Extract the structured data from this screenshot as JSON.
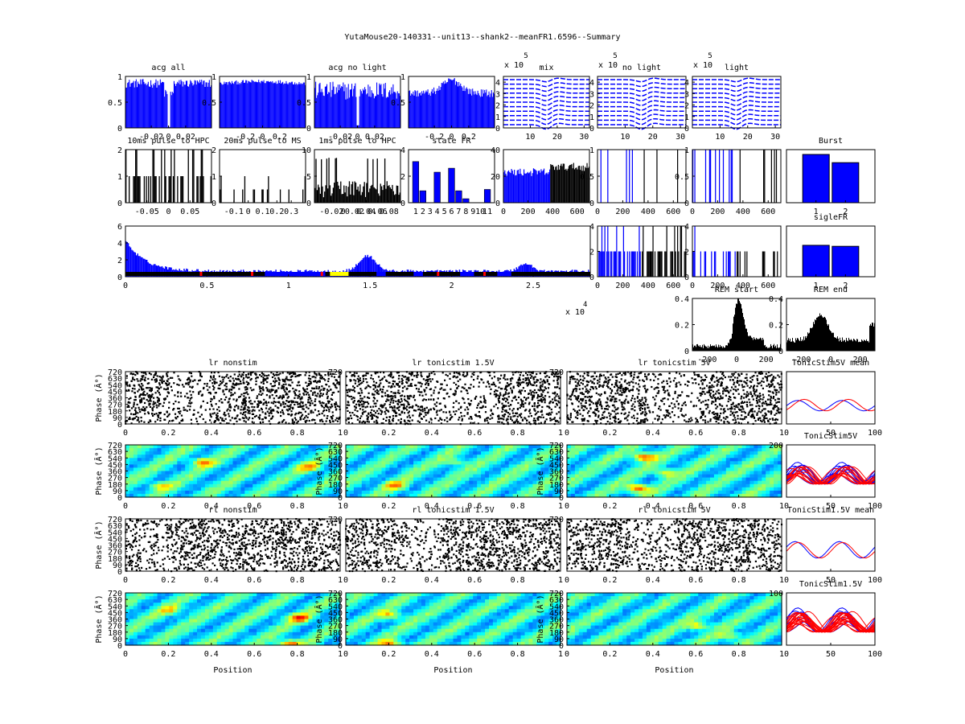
{
  "figure": {
    "title": "YutaMouse20-140331--unit13--shank2--meanFR1.6596--Summary",
    "exp_x_label": "x 10",
    "exp_x_value": "4"
  },
  "colors": {
    "blue": "#0000ff",
    "red": "#ff0000",
    "black": "#000000",
    "yellow": "#ffff00",
    "axis": "#000000"
  },
  "chart_data": [
    {
      "id": "acg-all",
      "type": "bar",
      "title": "acg all",
      "xlim": [
        -0.05,
        0.05
      ],
      "ylim": [
        0,
        1
      ],
      "xticks": [
        "-0.02",
        "0",
        "0.02"
      ],
      "yticks": [
        "0",
        "0.5",
        "1"
      ],
      "series": [
        {
          "name": "acg all",
          "color": "blue",
          "values_desc": "flat ~0.8 with dip to 0 at 0"
        }
      ]
    },
    {
      "id": "acg-wide",
      "type": "bar",
      "title": "",
      "xlim": [
        -0.5,
        0.5
      ],
      "ylim": [
        0,
        1
      ],
      "xticks": [
        "-0.2",
        "0",
        "0.2"
      ],
      "yticks": [
        "0.5",
        "1"
      ],
      "series": [
        {
          "name": "acg wide",
          "color": "blue",
          "values_desc": "flat ~0.85"
        }
      ]
    },
    {
      "id": "acg-no-light",
      "type": "bar",
      "title": "acg no light",
      "xlim": [
        -0.05,
        0.05
      ],
      "ylim": [
        0,
        1
      ],
      "xticks": [
        "-0.02",
        "0",
        "0.02"
      ],
      "yticks": [
        "0",
        "0.5",
        "1"
      ],
      "series": [
        {
          "name": "acg no light",
          "color": "blue",
          "values_desc": "~0.7 with dip at 0"
        }
      ]
    },
    {
      "id": "acg-no-light-wide",
      "type": "bar",
      "title": "",
      "xlim": [
        -0.5,
        0.5
      ],
      "ylim": [
        0,
        1
      ],
      "xticks": [
        "-0.2",
        "0",
        "0.2"
      ],
      "yticks": [
        "0.5",
        "1"
      ],
      "series": [
        {
          "name": "acg no light wide",
          "color": "blue",
          "values_desc": "~0.65 peak 0.95 at 0"
        }
      ]
    },
    {
      "id": "wave-mix",
      "type": "line",
      "title": "mix",
      "exp": "5",
      "exp_label": "x 10",
      "xlim": [
        0,
        32
      ],
      "ylim": [
        0,
        4.5
      ],
      "xticks": [
        "10",
        "20",
        "30"
      ],
      "yticks": [
        "0",
        "1",
        "2",
        "3",
        "4"
      ]
    },
    {
      "id": "wave-no-light",
      "type": "line",
      "title": "no light",
      "exp": "5",
      "exp_label": "x 10",
      "xlim": [
        0,
        32
      ],
      "ylim": [
        0,
        4.5
      ],
      "xticks": [
        "10",
        "20",
        "30"
      ],
      "yticks": [
        "0",
        "1",
        "2",
        "3",
        "4"
      ]
    },
    {
      "id": "wave-light",
      "type": "line",
      "title": "light",
      "exp": "5",
      "exp_label": "x 10",
      "xlim": [
        0,
        32
      ],
      "ylim": [
        0,
        4.5
      ],
      "xticks": [
        "10",
        "20",
        "30"
      ],
      "yticks": [
        "0",
        "1",
        "2",
        "3",
        "4"
      ]
    },
    {
      "id": "pulse-10ms-hpc",
      "type": "bar",
      "title": "10ms pulse to HPC",
      "xlim": [
        -0.1,
        0.1
      ],
      "ylim": [
        0,
        2
      ],
      "xticks": [
        "-0.05",
        "0",
        "0.05"
      ],
      "yticks": [
        "0",
        "1",
        "2"
      ]
    },
    {
      "id": "pulse-20ms-ms",
      "type": "bar",
      "title": "20ms pulse to MS",
      "xlim": [
        -0.2,
        0.4
      ],
      "ylim": [
        0,
        2
      ],
      "xticks": [
        "-0.1",
        "0",
        "0.1",
        "0.2",
        "0.3"
      ],
      "yticks": [
        "0",
        "1",
        "2"
      ]
    },
    {
      "id": "pulse-1ms-hpc",
      "type": "bar",
      "title": "1ms pulse to HPC",
      "xlim": [
        -0.05,
        0.1
      ],
      "ylim": [
        0,
        10
      ],
      "xticks": [
        "-0.02",
        "0",
        "0.02",
        "0.04",
        "0.06",
        "0.08"
      ],
      "yticks": [
        "0",
        "5",
        "10"
      ]
    },
    {
      "id": "state-fr",
      "type": "bar",
      "title": "state FR",
      "xlim": [
        0,
        12
      ],
      "ylim": [
        0,
        4
      ],
      "categories": [
        "1",
        "2",
        "3",
        "4",
        "5",
        "6",
        "7",
        "8",
        "9",
        "10",
        "11"
      ],
      "values": [
        3.1,
        0.9,
        0,
        2.3,
        0,
        2.6,
        0.9,
        0.3,
        0,
        0,
        1.0
      ],
      "yticks": [
        "0",
        "2",
        "4"
      ]
    },
    {
      "id": "fr-time-1",
      "type": "bar",
      "title": "",
      "xlim": [
        0,
        700
      ],
      "ylim": [
        0,
        40
      ],
      "xticks": [
        "0",
        "200",
        "400",
        "600"
      ],
      "yticks": [
        "0",
        "20",
        "40"
      ]
    },
    {
      "id": "fr-time-2",
      "type": "bar",
      "title": "",
      "xlim": [
        0,
        700
      ],
      "ylim": [
        0,
        1
      ],
      "xticks": [
        "0",
        "200",
        "400",
        "600"
      ],
      "yticks": [
        "0",
        "0.5",
        "1"
      ]
    },
    {
      "id": "fr-time-3",
      "type": "bar",
      "title": "",
      "xlim": [
        0,
        700
      ],
      "ylim": [
        0,
        1
      ],
      "xticks": [
        "0",
        "200",
        "400",
        "600"
      ],
      "yticks": [
        "0",
        "0.5",
        "1"
      ]
    },
    {
      "id": "burst",
      "type": "bar",
      "title": "Burst",
      "categories": [
        "1",
        "2"
      ],
      "values": [
        1.0,
        0.83
      ],
      "ylim": [
        0,
        1.1
      ],
      "xticks": [
        "1",
        "2"
      ],
      "yticks": []
    },
    {
      "id": "fr-long",
      "type": "bar",
      "title": "",
      "xlim": [
        0,
        2.85
      ],
      "ylim": [
        0,
        6
      ],
      "xticks": [
        "0",
        "0.5",
        "1",
        "1.5",
        "2",
        "2.5"
      ],
      "yticks": [
        "0",
        "2",
        "4",
        "6"
      ]
    },
    {
      "id": "fr-time-4",
      "type": "bar",
      "title": "",
      "xlim": [
        0,
        700
      ],
      "ylim": [
        0,
        4
      ],
      "xticks": [
        "0",
        "200",
        "400",
        "600"
      ],
      "yticks": [
        "0",
        "2",
        "4"
      ]
    },
    {
      "id": "fr-time-5",
      "type": "bar",
      "title": "",
      "xlim": [
        0,
        700
      ],
      "ylim": [
        0,
        4
      ],
      "xticks": [
        "0",
        "200",
        "400",
        "600"
      ],
      "yticks": [
        "0",
        "2",
        "4"
      ]
    },
    {
      "id": "sigle-fr",
      "type": "bar",
      "title": "sigleFR",
      "categories": [
        "1",
        "2"
      ],
      "values": [
        0.62,
        0.6
      ],
      "ylim": [
        0,
        1
      ],
      "xticks": [
        "1",
        "2"
      ],
      "yticks": []
    },
    {
      "id": "rem-start",
      "type": "area",
      "title": "REM start",
      "xlim": [
        -300,
        300
      ],
      "ylim": [
        0,
        0.4
      ],
      "xticks": [
        "-200",
        "0",
        "200"
      ],
      "yticks": [
        "0",
        "0.2",
        "0.4"
      ]
    },
    {
      "id": "rem-end",
      "type": "area",
      "title": "REM end",
      "xlim": [
        -300,
        300
      ],
      "ylim": [
        0,
        0.4
      ],
      "xticks": [
        "-200",
        "0",
        "200"
      ],
      "yticks": [
        "0",
        "0.2",
        "0.4"
      ]
    },
    {
      "id": "lr-nonstim",
      "type": "scatter",
      "title": "lr nonstim",
      "xlim": [
        0,
        1
      ],
      "ylim": [
        0,
        720
      ],
      "xlabel": "",
      "ylabel": "Phase (Â°)",
      "xticks": [
        "0",
        "0.2",
        "0.4",
        "0.6",
        "0.8",
        "1"
      ],
      "yticks": [
        "0",
        "90",
        "180",
        "270",
        "360",
        "450",
        "540",
        "630",
        "720"
      ]
    },
    {
      "id": "lr-tonic-15",
      "type": "scatter",
      "title": "lr tonicstim 1.5V",
      "xlim": [
        0,
        1
      ],
      "ylim": [
        0,
        720
      ],
      "xticks": [
        "0",
        "0.2",
        "0.4",
        "0.6",
        "0.8",
        "1"
      ],
      "yticks": [
        "720"
      ]
    },
    {
      "id": "lr-tonic-5",
      "type": "scatter",
      "title": "lr tonicstim 5V",
      "xlim": [
        0,
        1
      ],
      "ylim": [
        0,
        720
      ],
      "xticks": [
        "0",
        "0.2",
        "0.4",
        "0.6",
        "0.8",
        "1"
      ],
      "yticks": [
        "720"
      ]
    },
    {
      "id": "tonic5-mean",
      "type": "line",
      "title": "TonicStim5V mean",
      "xlim": [
        0,
        100
      ],
      "ylim": [
        0,
        1
      ],
      "xticks": [
        "0",
        "50",
        "100"
      ],
      "yticks": []
    },
    {
      "id": "heat-lr-nonstim",
      "type": "heatmap",
      "title": "",
      "xlim": [
        0,
        1
      ],
      "ylim": [
        0,
        720
      ],
      "ylabel": "Phase (Â°)",
      "xticks": [
        "0",
        "0.2",
        "0.4",
        "0.6",
        "0.8",
        "1"
      ],
      "yticks": [
        "0",
        "90",
        "180",
        "270",
        "360",
        "450",
        "540",
        "630",
        "720"
      ]
    },
    {
      "id": "heat-lr-tonic-15",
      "type": "heatmap",
      "title": "",
      "xlim": [
        0,
        1
      ],
      "ylim": [
        0,
        720
      ],
      "ylabel": "Phase (Â°)",
      "xticks": [
        "0",
        "0.2",
        "0.4",
        "0.6",
        "0.8",
        "1"
      ],
      "yticks": [
        "0",
        "90",
        "180",
        "270",
        "360",
        "450",
        "540",
        "630",
        "720"
      ]
    },
    {
      "id": "heat-lr-tonic-5",
      "type": "heatmap",
      "title": "",
      "xlim": [
        0,
        1
      ],
      "ylim": [
        0,
        720
      ],
      "ylabel": "Phase (Â°)",
      "xticks": [
        "0",
        "0.2",
        "0.4",
        "0.6",
        "0.8",
        "1"
      ],
      "yticks": [
        "0",
        "90",
        "180",
        "270",
        "360",
        "450",
        "540",
        "630",
        "720"
      ]
    },
    {
      "id": "tonic5",
      "type": "line",
      "title": "TonicStim5V",
      "xlim": [
        0,
        100
      ],
      "ylim": [
        0,
        200
      ],
      "xticks": [
        "0",
        "50",
        "100"
      ],
      "yticks": [
        "200"
      ]
    },
    {
      "id": "rl-nonstim",
      "type": "scatter",
      "title": "rl nonstim",
      "xlim": [
        0,
        1
      ],
      "ylim": [
        0,
        720
      ],
      "ylabel": "Phase (Â°)",
      "xticks": [
        "0",
        "0.2",
        "0.4",
        "0.6",
        "0.8",
        "1"
      ],
      "yticks": [
        "0",
        "90",
        "180",
        "270",
        "360",
        "450",
        "540",
        "630",
        "720"
      ]
    },
    {
      "id": "rl-tonic-15",
      "type": "scatter",
      "title": "rl tonicstim 1.5V",
      "xlim": [
        0,
        1
      ],
      "ylim": [
        0,
        720
      ],
      "xticks": [
        "0",
        "0.2",
        "0.4",
        "0.6",
        "0.8",
        "1"
      ],
      "yticks": [
        "720"
      ]
    },
    {
      "id": "rl-tonic-5",
      "type": "scatter",
      "title": "rl tonicstim 5V",
      "xlim": [
        0,
        1
      ],
      "ylim": [
        0,
        720
      ],
      "xticks": [
        "0",
        "0.2",
        "0.4",
        "0.6",
        "0.8",
        "1"
      ],
      "yticks": [
        "720"
      ]
    },
    {
      "id": "tonic15-mean",
      "type": "line",
      "title": "TonicStim1.5V mean",
      "xlim": [
        0,
        100
      ],
      "ylim": [
        0,
        1
      ],
      "xticks": [
        "0",
        "50",
        "100"
      ],
      "yticks": []
    },
    {
      "id": "heat-rl-nonstim",
      "type": "heatmap",
      "title": "",
      "xlim": [
        0,
        1
      ],
      "ylim": [
        0,
        720
      ],
      "xlabel": "Position",
      "ylabel": "Phase (Â°)",
      "xticks": [
        "0",
        "0.2",
        "0.4",
        "0.6",
        "0.8",
        "1"
      ],
      "yticks": [
        "0",
        "90",
        "180",
        "270",
        "360",
        "450",
        "540",
        "630",
        "720"
      ]
    },
    {
      "id": "heat-rl-tonic-15",
      "type": "heatmap",
      "title": "",
      "xlim": [
        0,
        1
      ],
      "ylim": [
        0,
        720
      ],
      "xlabel": "Position",
      "ylabel": "Phase (Â°)",
      "xticks": [
        "0",
        "0.2",
        "0.4",
        "0.6",
        "0.8",
        "1"
      ],
      "yticks": [
        "0",
        "90",
        "180",
        "270",
        "360",
        "450",
        "540",
        "630",
        "720"
      ]
    },
    {
      "id": "heat-rl-tonic-5",
      "type": "heatmap",
      "title": "",
      "xlim": [
        0,
        1
      ],
      "ylim": [
        0,
        720
      ],
      "xlabel": "Position",
      "ylabel": "Phase (Â°)",
      "xticks": [
        "0",
        "0.2",
        "0.4",
        "0.6",
        "0.8",
        "1"
      ],
      "yticks": [
        "0",
        "90",
        "180",
        "270",
        "360",
        "450",
        "540",
        "630",
        "720"
      ]
    },
    {
      "id": "tonic15",
      "type": "line",
      "title": "TonicStim1.5V",
      "xlim": [
        0,
        100
      ],
      "ylim": [
        0,
        100
      ],
      "xticks": [
        "0",
        "50",
        "100"
      ],
      "yticks": [
        "100"
      ]
    }
  ]
}
